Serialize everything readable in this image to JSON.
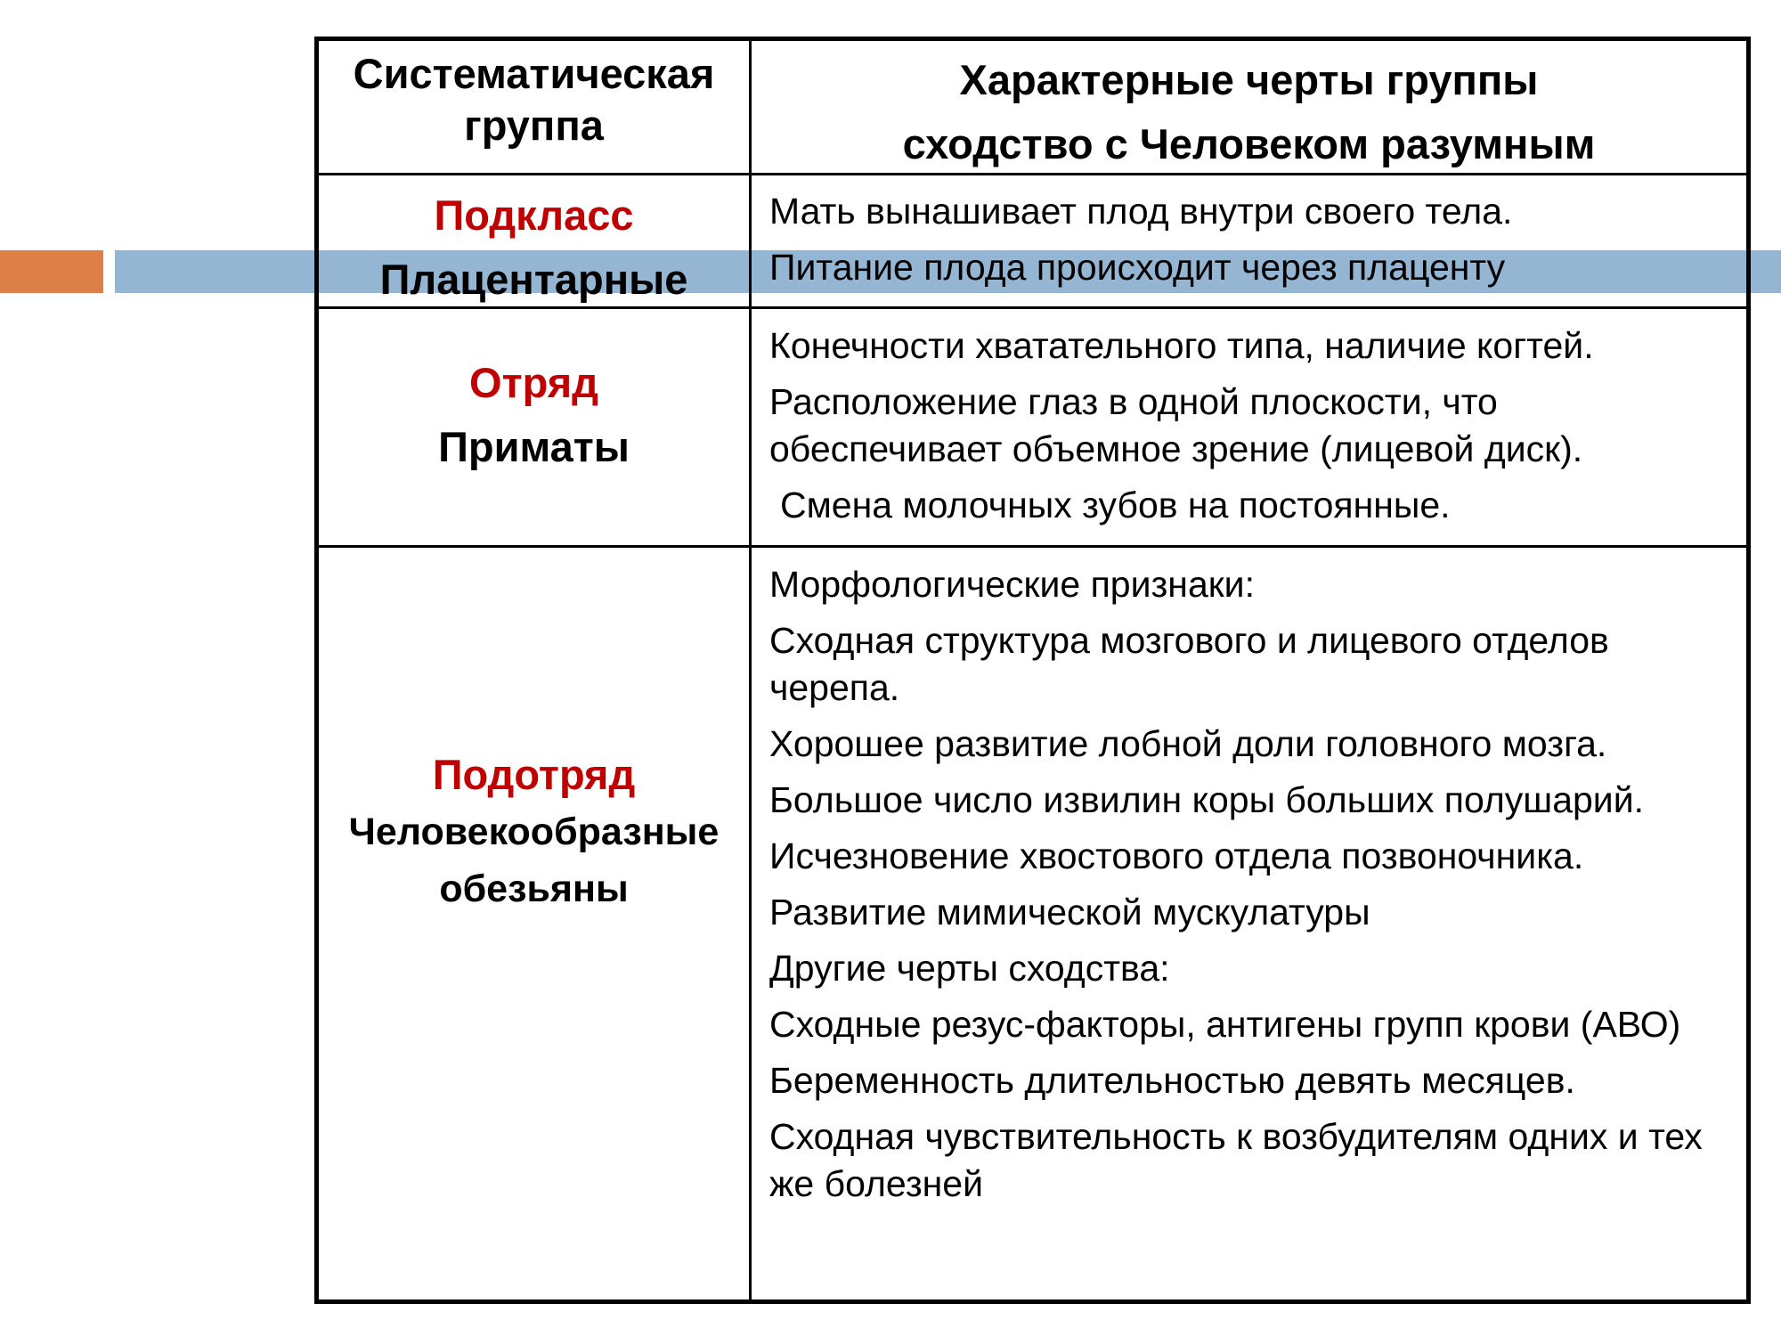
{
  "colors": {
    "accent_orange": "#dd8047",
    "band_blue": "#94b6d2",
    "label_red": "#c00000"
  },
  "header": {
    "col1": "Систематическая группа",
    "col2_line1": "Характерные черты группы",
    "col2_line2": "сходство с Человеком разумным"
  },
  "rows": [
    {
      "rank": "Подкласс",
      "group": "Плацентарные",
      "features": [
        "Мать вынашивает плод внутри своего тела.",
        "Питание плода происходит через плаценту"
      ]
    },
    {
      "rank": "Отряд",
      "group": "Приматы",
      "features": [
        "Конечности хватательного типа, наличие когтей.",
        "Расположение глаз в одной плоскости, что обеспечивает объемное зрение (лицевой диск).",
        "Смена молочных зубов на постоянные."
      ]
    },
    {
      "rank": "Подотряд",
      "group": "Человекообразные обезьяны",
      "features": [
        "Морфологические признаки:",
        "Сходная структура мозгового и лицевого отделов черепа.",
        "Хорошее развитие лобной доли головного мозга.",
        "Большое число извилин коры больших полушарий.",
        "Исчезновение хвостового отдела позвоночника.",
        "Развитие мимической мускулатуры",
        "Другие черты сходства:",
        "Сходные резус-факторы, антигены групп крови (АВО)",
        "Беременность длительностью девять месяцев.",
        "Сходная чувствительность к возбудителям одних и тех же болезней"
      ]
    }
  ]
}
